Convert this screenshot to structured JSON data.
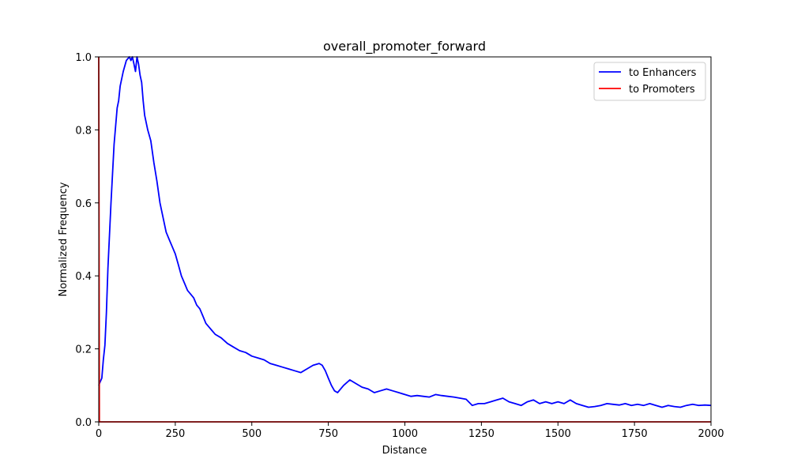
{
  "chart_data": {
    "type": "line",
    "title": "overall_promoter_forward",
    "xlabel": "Distance",
    "ylabel": "Normalized Frequency",
    "xlim": [
      0,
      2000
    ],
    "ylim": [
      0,
      1.0
    ],
    "x_ticks": [
      0,
      250,
      500,
      750,
      1000,
      1250,
      1500,
      1750,
      2000
    ],
    "x_tick_labels": [
      "0",
      "250",
      "500",
      "750",
      "1000",
      "1250",
      "1500",
      "1750",
      "2000"
    ],
    "y_ticks": [
      0,
      0.2,
      0.4,
      0.6,
      0.8,
      1.0
    ],
    "y_tick_labels": [
      "0.0",
      "0.2",
      "0.4",
      "0.6",
      "0.8",
      "1.0"
    ],
    "grid": false,
    "legend_position": "top-right",
    "series": [
      {
        "name": "to Enhancers",
        "color": "#0000ff",
        "x": [
          0,
          5,
          10,
          15,
          20,
          25,
          30,
          40,
          50,
          60,
          65,
          70,
          80,
          90,
          100,
          105,
          110,
          115,
          120,
          125,
          130,
          135,
          140,
          145,
          150,
          160,
          170,
          180,
          190,
          200,
          210,
          220,
          230,
          240,
          250,
          260,
          270,
          280,
          290,
          300,
          310,
          320,
          330,
          340,
          350,
          360,
          370,
          380,
          390,
          400,
          420,
          440,
          460,
          480,
          500,
          520,
          540,
          560,
          580,
          600,
          620,
          640,
          660,
          680,
          700,
          720,
          730,
          740,
          750,
          760,
          770,
          780,
          790,
          800,
          820,
          840,
          860,
          880,
          900,
          920,
          940,
          960,
          980,
          1000,
          1020,
          1040,
          1060,
          1080,
          1100,
          1120,
          1140,
          1160,
          1180,
          1200,
          1220,
          1240,
          1260,
          1280,
          1300,
          1320,
          1340,
          1360,
          1380,
          1400,
          1420,
          1440,
          1460,
          1480,
          1500,
          1520,
          1540,
          1560,
          1580,
          1600,
          1620,
          1640,
          1660,
          1680,
          1700,
          1720,
          1740,
          1760,
          1780,
          1800,
          1820,
          1840,
          1860,
          1880,
          1900,
          1920,
          1940,
          1960,
          1980,
          2000
        ],
        "y": [
          0.1,
          0.11,
          0.12,
          0.17,
          0.21,
          0.3,
          0.42,
          0.6,
          0.76,
          0.86,
          0.88,
          0.92,
          0.96,
          0.99,
          1.0,
          0.99,
          1.0,
          0.98,
          0.96,
          1.0,
          0.98,
          0.95,
          0.93,
          0.88,
          0.84,
          0.8,
          0.77,
          0.71,
          0.66,
          0.6,
          0.56,
          0.52,
          0.5,
          0.48,
          0.46,
          0.43,
          0.4,
          0.38,
          0.36,
          0.35,
          0.34,
          0.32,
          0.31,
          0.29,
          0.27,
          0.26,
          0.25,
          0.24,
          0.235,
          0.23,
          0.215,
          0.205,
          0.195,
          0.19,
          0.18,
          0.175,
          0.17,
          0.16,
          0.155,
          0.15,
          0.145,
          0.14,
          0.135,
          0.145,
          0.155,
          0.16,
          0.155,
          0.14,
          0.12,
          0.1,
          0.085,
          0.08,
          0.09,
          0.1,
          0.115,
          0.105,
          0.095,
          0.09,
          0.08,
          0.085,
          0.09,
          0.085,
          0.08,
          0.075,
          0.07,
          0.072,
          0.07,
          0.068,
          0.075,
          0.072,
          0.07,
          0.068,
          0.065,
          0.062,
          0.045,
          0.05,
          0.05,
          0.055,
          0.06,
          0.065,
          0.055,
          0.05,
          0.045,
          0.055,
          0.06,
          0.05,
          0.055,
          0.05,
          0.055,
          0.05,
          0.06,
          0.05,
          0.045,
          0.04,
          0.042,
          0.045,
          0.05,
          0.048,
          0.046,
          0.05,
          0.045,
          0.048,
          0.045,
          0.05,
          0.045,
          0.04,
          0.045,
          0.042,
          0.04,
          0.045,
          0.048,
          0.045,
          0.046,
          0.045
        ]
      },
      {
        "name": "to Promoters",
        "color": "#ff0000",
        "x": [
          0,
          1,
          2,
          5,
          10,
          100,
          250,
          500,
          750,
          1000,
          1250,
          1500,
          1750,
          2000
        ],
        "y": [
          1.0,
          0.5,
          0.0,
          0.0,
          0.0,
          0.0,
          0.0,
          0.0,
          0.0,
          0.0,
          0.0,
          0.0,
          0.0,
          0.0
        ]
      }
    ]
  }
}
